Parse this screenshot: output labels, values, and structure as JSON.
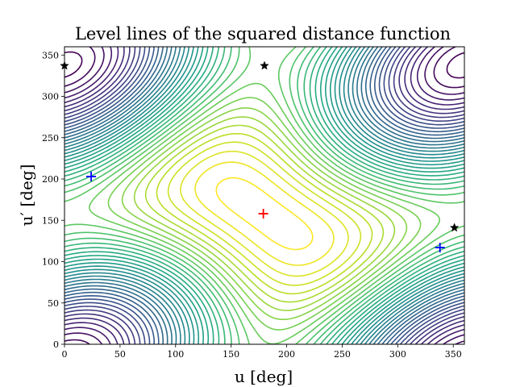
{
  "chart_data": {
    "type": "contour",
    "title": "Level lines of the squared distance function",
    "xlabel": "u [deg]",
    "ylabel": "u′ [deg]",
    "xlim": [
      0,
      360
    ],
    "ylim": [
      0,
      360
    ],
    "x_ticks": [
      0,
      50,
      100,
      150,
      200,
      250,
      300,
      350
    ],
    "y_ticks": [
      0,
      50,
      100,
      150,
      200,
      250,
      300,
      350
    ],
    "colormap": "viridis",
    "grid": false,
    "markers": [
      {
        "type": "plus",
        "color": "#ff0000",
        "x": 179,
        "y": 158
      },
      {
        "type": "plus",
        "color": "#0000ff",
        "x": 24,
        "y": 203
      },
      {
        "type": "plus",
        "color": "#0000ff",
        "x": 338,
        "y": 117
      },
      {
        "type": "star",
        "color": "#000000",
        "x": 180,
        "y": 337
      },
      {
        "type": "star",
        "color": "#000000",
        "x": 351,
        "y": 141
      },
      {
        "type": "star",
        "color": "#000000",
        "x": 0,
        "y": 337
      }
    ]
  }
}
